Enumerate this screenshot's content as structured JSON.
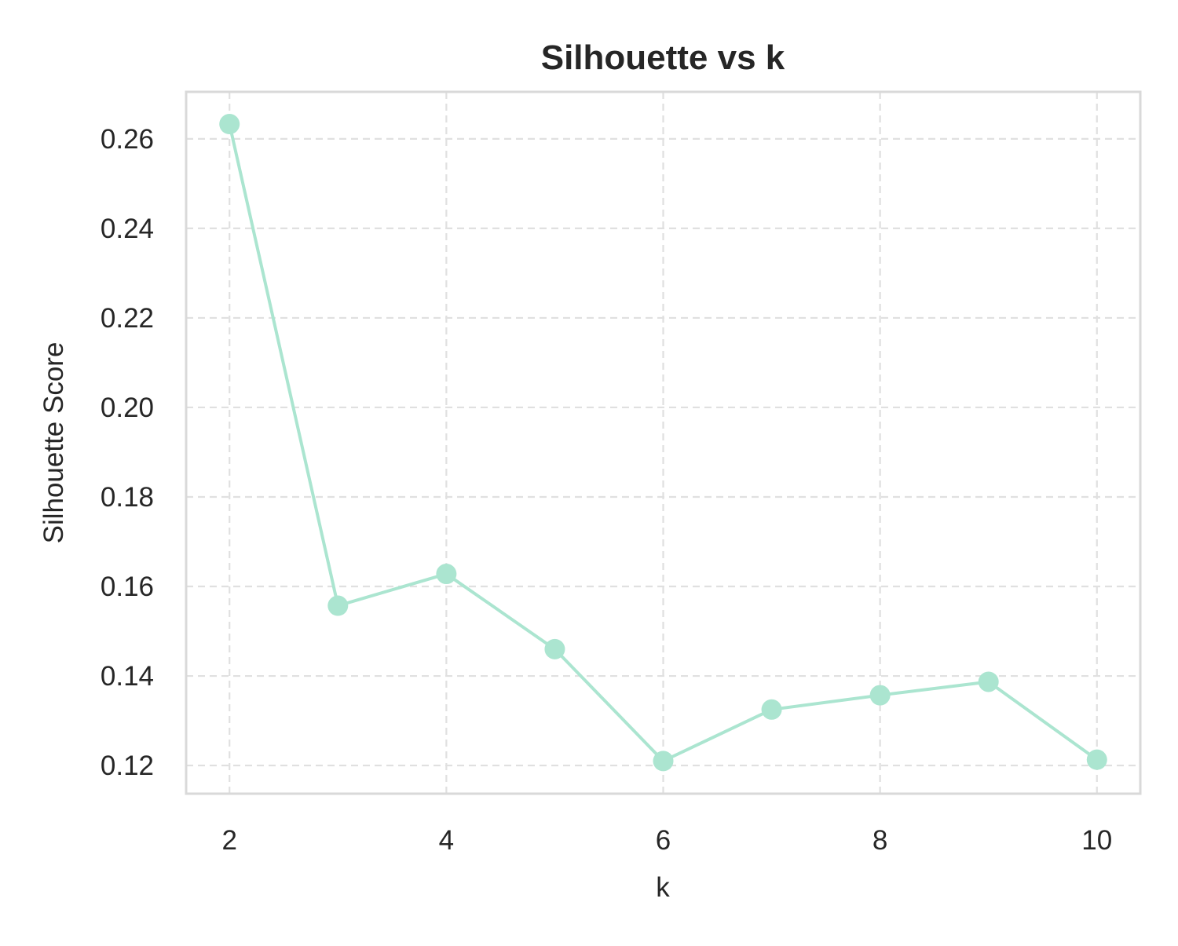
{
  "chart_data": {
    "type": "line",
    "title": "Silhouette vs k",
    "xlabel": "k",
    "ylabel": "Silhouette Score",
    "xlim": [
      1.6,
      10.4
    ],
    "ylim": [
      0.1137,
      0.2705
    ],
    "x_ticks": [
      2,
      4,
      6,
      8,
      10
    ],
    "x_tick_labels": [
      "2",
      "4",
      "6",
      "8",
      "10"
    ],
    "y_ticks": [
      0.12,
      0.14,
      0.16,
      0.18,
      0.2,
      0.22,
      0.24,
      0.26
    ],
    "y_tick_labels": [
      "0.12",
      "0.14",
      "0.16",
      "0.18",
      "0.20",
      "0.22",
      "0.24",
      "0.26"
    ],
    "grid": true,
    "legend": "none",
    "series": [
      {
        "x": [
          2,
          3,
          4,
          5,
          6,
          7,
          8,
          9,
          10
        ],
        "values": [
          0.2633,
          0.1557,
          0.1628,
          0.146,
          0.121,
          0.1325,
          0.1357,
          0.1387,
          0.1213
        ],
        "color": "#abe5d0",
        "marker": "circle"
      }
    ]
  }
}
